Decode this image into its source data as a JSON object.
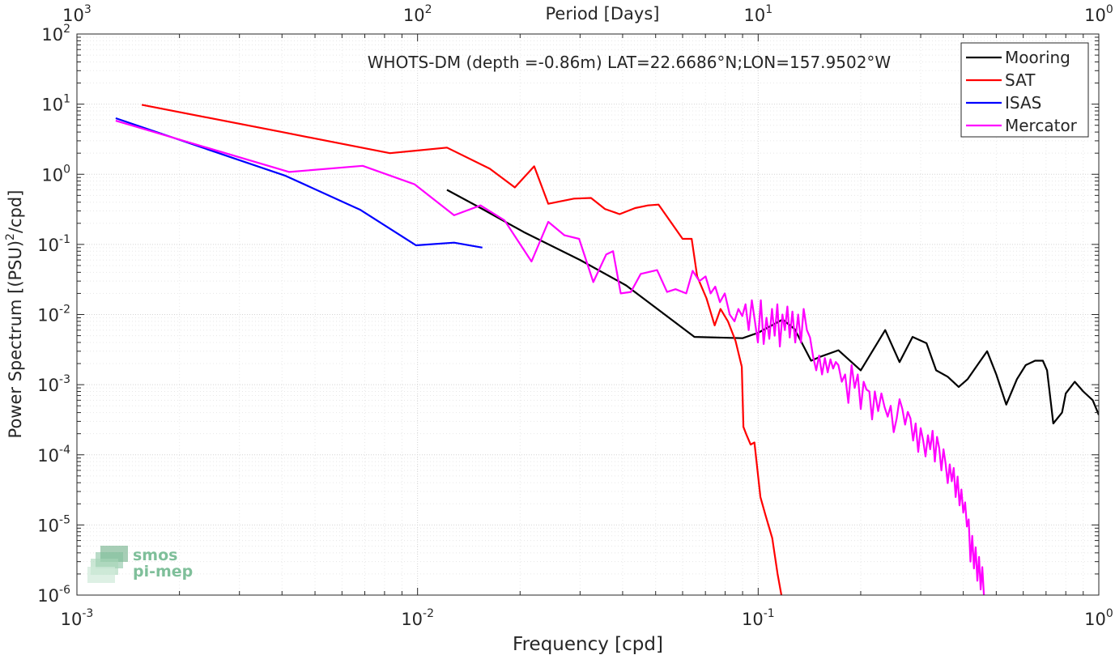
{
  "chart_data": {
    "type": "line",
    "title": "WHOTS-DM (depth =-0.86m) LAT=22.6686°N;LON=157.9502°W",
    "xlabel": "Frequency [cpd]",
    "ylabel": "Power Spectrum [(PSU)",
    "ylabel_sup": "2",
    "ylabel_tail": "/cpd]",
    "top_xlabel": "Period [Days]",
    "xscale": "log",
    "yscale": "log",
    "xlim": [
      0.001,
      1
    ],
    "ylim": [
      1e-06,
      100
    ],
    "grid": true,
    "legend_position": "top-right",
    "x_ticks": [
      {
        "v": 0.001,
        "base": "10",
        "exp": "-3"
      },
      {
        "v": 0.01,
        "base": "10",
        "exp": "-2"
      },
      {
        "v": 0.1,
        "base": "10",
        "exp": "-1"
      },
      {
        "v": 1,
        "base": "10",
        "exp": "0"
      }
    ],
    "top_ticks": [
      {
        "v": 0.001,
        "base": "10",
        "exp": "3"
      },
      {
        "v": 0.01,
        "base": "10",
        "exp": "2"
      },
      {
        "v": 0.1,
        "base": "10",
        "exp": "1"
      },
      {
        "v": 1,
        "base": "10",
        "exp": "0"
      }
    ],
    "y_ticks": [
      {
        "v": 1e-06,
        "base": "10",
        "exp": "-6"
      },
      {
        "v": 1e-05,
        "base": "10",
        "exp": "-5"
      },
      {
        "v": 0.0001,
        "base": "10",
        "exp": "-4"
      },
      {
        "v": 0.001,
        "base": "10",
        "exp": "-3"
      },
      {
        "v": 0.01,
        "base": "10",
        "exp": "-2"
      },
      {
        "v": 0.1,
        "base": "10",
        "exp": "-1"
      },
      {
        "v": 1,
        "base": "10",
        "exp": "0"
      },
      {
        "v": 10,
        "base": "10",
        "exp": "1"
      },
      {
        "v": 100,
        "base": "10",
        "exp": "2"
      }
    ],
    "series": [
      {
        "name": "Mooring",
        "color": "#000000",
        "points": [
          [
            0.0122,
            0.6
          ],
          [
            0.0155,
            0.32
          ],
          [
            0.0205,
            0.15
          ],
          [
            0.03,
            0.06
          ],
          [
            0.041,
            0.026
          ],
          [
            0.065,
            0.0048
          ],
          [
            0.09,
            0.0046
          ],
          [
            0.1,
            0.0055
          ],
          [
            0.118,
            0.0085
          ],
          [
            0.128,
            0.0062
          ],
          [
            0.143,
            0.0022
          ],
          [
            0.152,
            0.0025
          ],
          [
            0.172,
            0.0031
          ],
          [
            0.2,
            0.0016
          ],
          [
            0.236,
            0.006
          ],
          [
            0.26,
            0.0021
          ],
          [
            0.284,
            0.0048
          ],
          [
            0.312,
            0.0039
          ],
          [
            0.333,
            0.0016
          ],
          [
            0.36,
            0.0013
          ],
          [
            0.388,
            0.00093
          ],
          [
            0.412,
            0.0012
          ],
          [
            0.44,
            0.0019
          ],
          [
            0.47,
            0.003
          ],
          [
            0.5,
            0.0014
          ],
          [
            0.535,
            0.00052
          ],
          [
            0.575,
            0.0012
          ],
          [
            0.61,
            0.0019
          ],
          [
            0.65,
            0.0022
          ],
          [
            0.685,
            0.0022
          ],
          [
            0.705,
            0.0016
          ],
          [
            0.735,
            0.00028
          ],
          [
            0.78,
            0.0004
          ],
          [
            0.8,
            0.00075
          ],
          [
            0.85,
            0.0011
          ],
          [
            0.9,
            0.0008
          ],
          [
            0.96,
            0.0006
          ],
          [
            1.0,
            0.00037
          ]
        ]
      },
      {
        "name": "SAT",
        "color": "#ff0000",
        "points": [
          [
            0.00155,
            9.8
          ],
          [
            0.004,
            4.0
          ],
          [
            0.0083,
            2.0
          ],
          [
            0.0122,
            2.4
          ],
          [
            0.0163,
            1.2
          ],
          [
            0.0193,
            0.65
          ],
          [
            0.022,
            1.3
          ],
          [
            0.0242,
            0.38
          ],
          [
            0.0288,
            0.45
          ],
          [
            0.0323,
            0.46
          ],
          [
            0.0355,
            0.32
          ],
          [
            0.0392,
            0.27
          ],
          [
            0.0435,
            0.33
          ],
          [
            0.0475,
            0.36
          ],
          [
            0.051,
            0.37
          ],
          [
            0.06,
            0.12
          ],
          [
            0.0638,
            0.12
          ],
          [
            0.0662,
            0.035
          ],
          [
            0.0705,
            0.017
          ],
          [
            0.0745,
            0.007
          ],
          [
            0.0775,
            0.012
          ],
          [
            0.0815,
            0.008
          ],
          [
            0.0858,
            0.0042
          ],
          [
            0.0895,
            0.0018
          ],
          [
            0.0905,
            0.00025
          ],
          [
            0.0925,
            0.00019
          ],
          [
            0.095,
            0.00014
          ],
          [
            0.0975,
            0.00015
          ],
          [
            0.1015,
            2.5e-05
          ],
          [
            0.105,
            1.4e-05
          ],
          [
            0.11,
            6.5e-06
          ],
          [
            0.114,
            2e-06
          ],
          [
            0.117,
            1e-06
          ]
        ]
      },
      {
        "name": "ISAS",
        "color": "#0000ff",
        "points": [
          [
            0.0013,
            6.3
          ],
          [
            0.0041,
            0.95
          ],
          [
            0.0068,
            0.31
          ],
          [
            0.0099,
            0.097
          ],
          [
            0.0128,
            0.106
          ],
          [
            0.0155,
            0.09
          ]
        ]
      },
      {
        "name": "Mercator",
        "color": "#ff00ff",
        "points": [
          [
            0.0013,
            5.8
          ],
          [
            0.0042,
            1.08
          ],
          [
            0.0069,
            1.32
          ],
          [
            0.0098,
            0.72
          ],
          [
            0.0128,
            0.26
          ],
          [
            0.0153,
            0.36
          ],
          [
            0.018,
            0.22
          ],
          [
            0.0216,
            0.057
          ],
          [
            0.0242,
            0.21
          ],
          [
            0.027,
            0.135
          ],
          [
            0.0298,
            0.12
          ],
          [
            0.0328,
            0.029
          ],
          [
            0.0358,
            0.072
          ],
          [
            0.0375,
            0.08
          ],
          [
            0.0395,
            0.02
          ],
          [
            0.0423,
            0.021
          ],
          [
            0.0452,
            0.038
          ],
          [
            0.0505,
            0.043
          ],
          [
            0.054,
            0.021
          ],
          [
            0.0572,
            0.023
          ],
          [
            0.0615,
            0.02
          ],
          [
            0.0642,
            0.042
          ],
          [
            0.0672,
            0.03
          ],
          [
            0.0701,
            0.035
          ],
          [
            0.0725,
            0.02
          ],
          [
            0.0748,
            0.025
          ],
          [
            0.0772,
            0.015
          ],
          [
            0.0798,
            0.02
          ],
          [
            0.0825,
            0.01
          ],
          [
            0.0852,
            0.008
          ],
          [
            0.0875,
            0.012
          ],
          [
            0.0898,
            0.0095
          ],
          [
            0.0918,
            0.014
          ],
          [
            0.0938,
            0.006
          ],
          [
            0.0958,
            0.016
          ],
          [
            0.0978,
            0.008
          ],
          [
            0.0998,
            0.004
          ],
          [
            0.1018,
            0.016
          ],
          [
            0.1038,
            0.0038
          ],
          [
            0.1058,
            0.009
          ],
          [
            0.1078,
            0.0045
          ],
          [
            0.1098,
            0.012
          ],
          [
            0.1118,
            0.005
          ],
          [
            0.1138,
            0.014
          ],
          [
            0.1158,
            0.0035
          ],
          [
            0.1178,
            0.01
          ],
          [
            0.1198,
            0.006
          ],
          [
            0.1218,
            0.013
          ],
          [
            0.1238,
            0.0047
          ],
          [
            0.126,
            0.011
          ],
          [
            0.1285,
            0.004
          ],
          [
            0.131,
            0.01
          ],
          [
            0.1335,
            0.004
          ],
          [
            0.136,
            0.012
          ],
          [
            0.139,
            0.006
          ],
          [
            0.142,
            0.0047
          ],
          [
            0.145,
            0.0025
          ],
          [
            0.148,
            0.0016
          ],
          [
            0.151,
            0.0026
          ],
          [
            0.154,
            0.0014
          ],
          [
            0.157,
            0.0024
          ],
          [
            0.16,
            0.0015
          ],
          [
            0.163,
            0.0023
          ],
          [
            0.166,
            0.0017
          ],
          [
            0.169,
            0.0021
          ],
          [
            0.172,
            0.0019
          ],
          [
            0.176,
            0.0011
          ],
          [
            0.18,
            0.0014
          ],
          [
            0.184,
            0.00055
          ],
          [
            0.188,
            0.0019
          ],
          [
            0.192,
            0.0009
          ],
          [
            0.196,
            0.0014
          ],
          [
            0.2,
            0.00045
          ],
          [
            0.204,
            0.0011
          ],
          [
            0.208,
            0.00085
          ],
          [
            0.212,
            0.0008
          ],
          [
            0.216,
            0.00032
          ],
          [
            0.22,
            0.0008
          ],
          [
            0.225,
            0.00042
          ],
          [
            0.23,
            0.00075
          ],
          [
            0.235,
            0.00048
          ],
          [
            0.24,
            0.00035
          ],
          [
            0.245,
            0.0005
          ],
          [
            0.25,
            0.00021
          ],
          [
            0.255,
            0.00033
          ],
          [
            0.26,
            0.00062
          ],
          [
            0.265,
            0.00045
          ],
          [
            0.27,
            0.00027
          ],
          [
            0.275,
            0.00041
          ],
          [
            0.28,
            0.00033
          ],
          [
            0.285,
            0.00016
          ],
          [
            0.29,
            0.00028
          ],
          [
            0.295,
            0.00011
          ],
          [
            0.3,
            0.00024
          ],
          [
            0.305,
            0.00016
          ],
          [
            0.31,
            9.5e-05
          ],
          [
            0.315,
            0.00019
          ],
          [
            0.32,
            0.00012
          ],
          [
            0.325,
            0.00022
          ],
          [
            0.33,
            8e-05
          ],
          [
            0.335,
            0.00018
          ],
          [
            0.34,
            0.000125
          ],
          [
            0.345,
            6e-05
          ],
          [
            0.35,
            0.00012
          ],
          [
            0.355,
            7.5e-05
          ],
          [
            0.36,
            3.95e-05
          ],
          [
            0.365,
            7.3e-05
          ],
          [
            0.37,
            4.2e-05
          ],
          [
            0.375,
            6.5e-05
          ],
          [
            0.38,
            2.5e-05
          ],
          [
            0.385,
            4.9e-05
          ],
          [
            0.39,
            1.9e-05
          ],
          [
            0.395,
            3.2e-05
          ],
          [
            0.4,
            1.5e-05
          ],
          [
            0.405,
            2.1e-05
          ],
          [
            0.41,
            9.5e-06
          ],
          [
            0.415,
            1.2e-05
          ],
          [
            0.42,
            3e-06
          ],
          [
            0.425,
            7e-06
          ],
          [
            0.43,
            2.4e-06
          ],
          [
            0.435,
            4.8e-06
          ],
          [
            0.44,
            1.6e-06
          ],
          [
            0.445,
            3.5e-06
          ],
          [
            0.45,
            1.2e-06
          ],
          [
            0.455,
            2.5e-06
          ],
          [
            0.46,
            1e-06
          ]
        ]
      }
    ],
    "logo_text": [
      "smos",
      "pi-mep"
    ]
  }
}
